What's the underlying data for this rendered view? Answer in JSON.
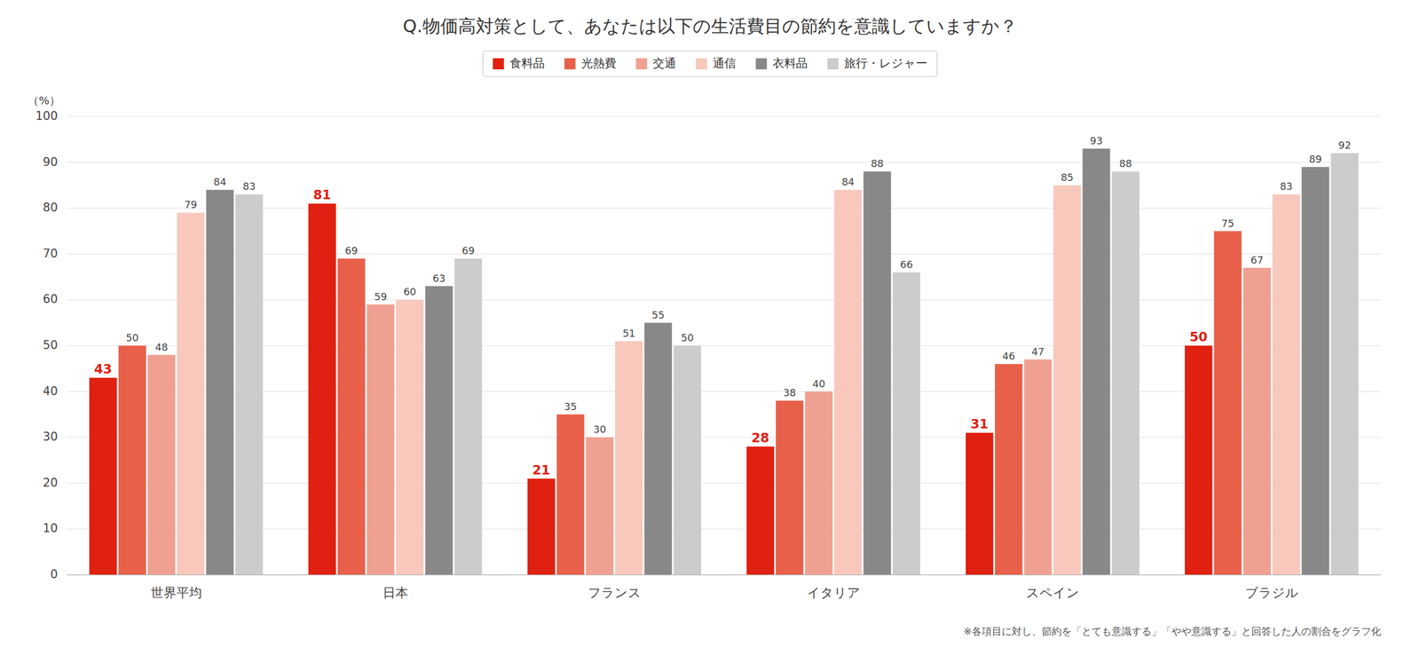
{
  "chart_data": {
    "type": "bar",
    "title": "Q.物価高対策として、あなたは以下の生活費目の節約を意識していますか？",
    "footnote": "※各項目に対し、節約を「とても意識する」「やや意識する」と回答した人の割合をグラフ化",
    "ylabel": "（%）",
    "categories": [
      "世界平均",
      "日本",
      "フランス",
      "イタリア",
      "スペイン",
      "ブラジル"
    ],
    "series": [
      {
        "name": "食料品",
        "color": "#e02010",
        "values": [
          43,
          81,
          21,
          28,
          31,
          50
        ]
      },
      {
        "name": "光熱費",
        "color": "#e8604a",
        "values": [
          50,
          69,
          35,
          38,
          46,
          75
        ]
      },
      {
        "name": "交通",
        "color": "#f0a090",
        "values": [
          48,
          59,
          30,
          40,
          47,
          67
        ]
      },
      {
        "name": "通信",
        "color": "#f8c8bc",
        "values": [
          79,
          60,
          51,
          84,
          85,
          83
        ]
      },
      {
        "name": "衣料品",
        "color": "#888888",
        "values": [
          84,
          63,
          55,
          88,
          93,
          89
        ]
      },
      {
        "name": "旅行・レジャー",
        "color": "#cccccc",
        "values": [
          83,
          69,
          50,
          66,
          88,
          92
        ]
      }
    ],
    "ylim": [
      0,
      100
    ],
    "yticks": [
      0,
      10,
      20,
      30,
      40,
      50,
      60,
      70,
      80,
      90,
      100
    ],
    "grid": true,
    "legend": "top",
    "data_labels": true
  }
}
